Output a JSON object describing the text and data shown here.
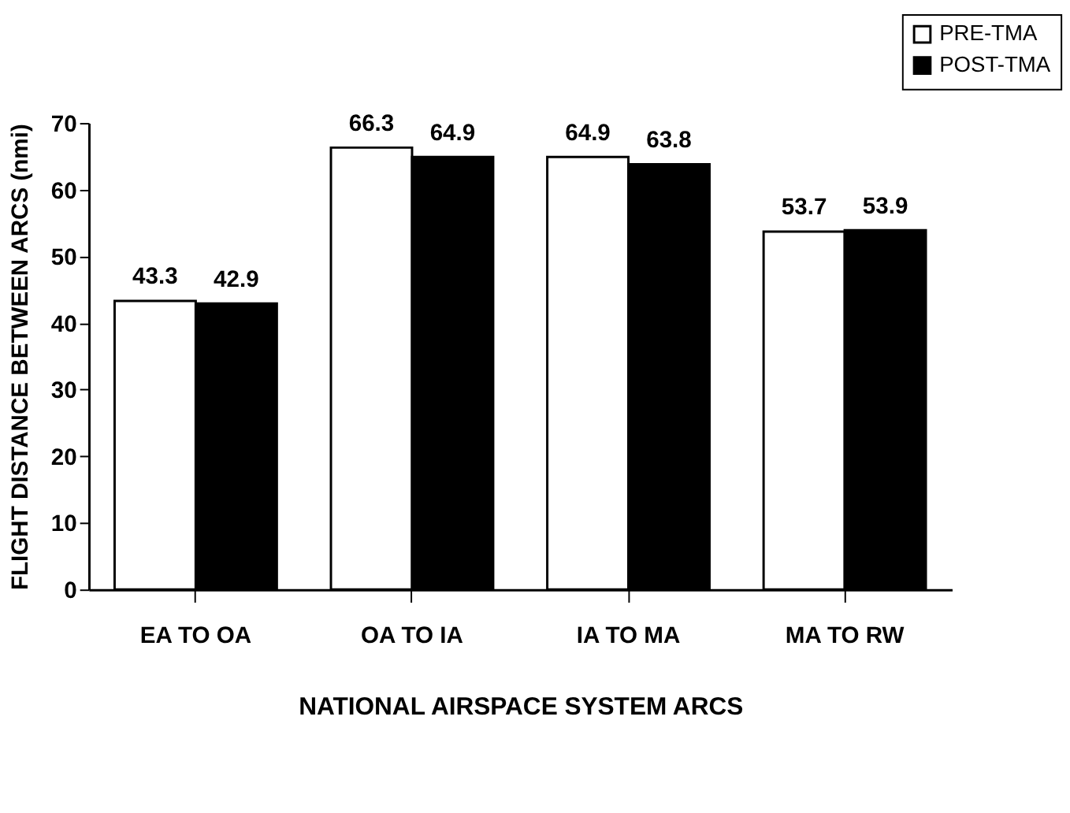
{
  "chart_data": {
    "type": "bar",
    "xlabel": "NATIONAL AIRSPACE SYSTEM ARCS",
    "ylabel": "FLIGHT DISTANCE BETWEEN ARCS (nmi)",
    "categories": [
      "EA TO OA",
      "OA TO IA",
      "IA TO MA",
      "MA TO RW"
    ],
    "series": [
      {
        "name": "PRE-TMA",
        "color": "#ffffff",
        "values": [
          43.3,
          66.3,
          64.9,
          53.7
        ]
      },
      {
        "name": "POST-TMA",
        "color": "#000000",
        "values": [
          42.9,
          64.9,
          63.8,
          53.9
        ]
      }
    ],
    "ylim": [
      0,
      70
    ],
    "yticks": [
      0,
      10,
      20,
      30,
      40,
      50,
      60,
      70
    ],
    "grid": false,
    "legend": "top right",
    "data_labels": true
  }
}
